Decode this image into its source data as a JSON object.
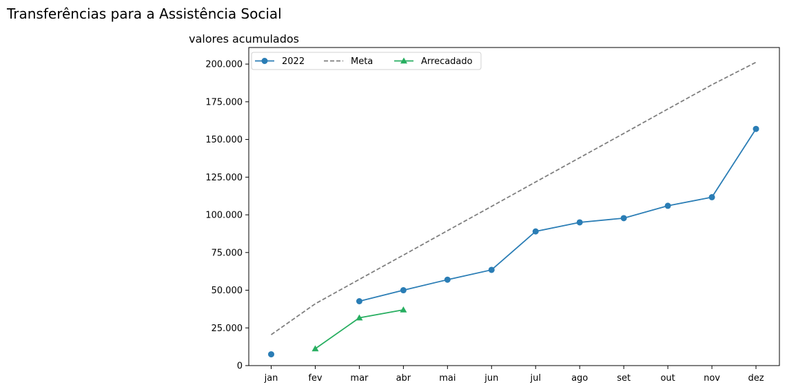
{
  "figure_title": "Transferências para a Assistência Social",
  "chart_data": {
    "type": "line",
    "title": "valores acumulados",
    "xlabel": "",
    "ylabel": "",
    "categories": [
      "jan",
      "fev",
      "mar",
      "abr",
      "mai",
      "jun",
      "jul",
      "ago",
      "set",
      "out",
      "nov",
      "dez"
    ],
    "ylim": [
      0,
      211000
    ],
    "yticks": [
      0,
      25000,
      50000,
      75000,
      100000,
      125000,
      150000,
      175000,
      200000
    ],
    "ytick_labels": [
      "0",
      "25.000",
      "50.000",
      "75.000",
      "100.000",
      "125.000",
      "150.000",
      "175.000",
      "200.000"
    ],
    "grid": false,
    "legend_placement": "top-left",
    "series": [
      {
        "name": "2022",
        "color": "#2a7db5",
        "marker": "circle",
        "style": "solid",
        "values": [
          7500,
          null,
          42700,
          50000,
          57000,
          63500,
          89000,
          95000,
          97800,
          106000,
          111700,
          157000
        ]
      },
      {
        "name": "Meta",
        "color": "#7f7f7f",
        "marker": "none",
        "style": "dashed",
        "values": [
          20500,
          41000,
          57200,
          73300,
          89500,
          105600,
          121800,
          137900,
          154000,
          170200,
          186300,
          201200
        ]
      },
      {
        "name": "Arrecadado",
        "color": "#27ae60",
        "marker": "triangle",
        "style": "solid",
        "values": [
          null,
          11200,
          31700,
          37000,
          null,
          null,
          null,
          null,
          null,
          null,
          null,
          null
        ]
      }
    ]
  }
}
